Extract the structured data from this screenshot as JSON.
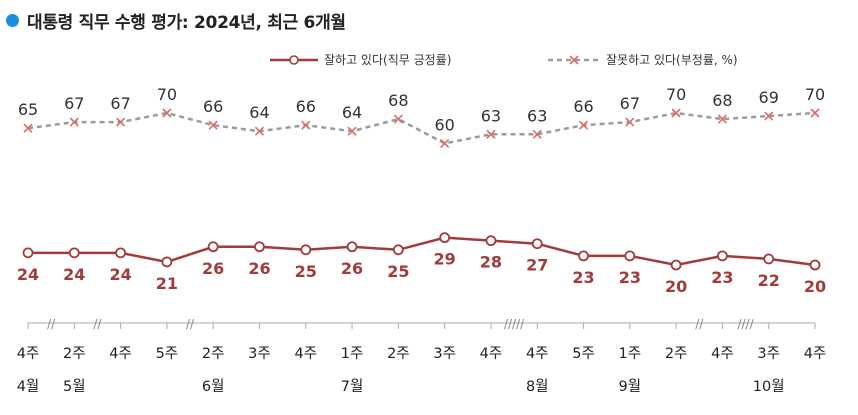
{
  "title": "대통령 직무 수행 평가: 2024년, 최근 6개월",
  "colors": {
    "approve": "#a23b3b",
    "disapprove": "#9b9b9b",
    "disapprove_marker": "#d96b6b",
    "title_dot": "#1a8fe0",
    "axis": "#aaaaaa"
  },
  "icons": {
    "title_marker": "filled-circle-icon",
    "approve_marker": "hollow-circle-icon",
    "disapprove_marker": "cross-icon"
  },
  "chart_data": {
    "type": "line",
    "title": "대통령 직무 수행 평가: 2024년, 최근 6개월",
    "categories": [
      "4주",
      "2주",
      "4주",
      "5주",
      "2주",
      "3주",
      "4주",
      "1주",
      "2주",
      "3주",
      "4주",
      "4주",
      "5주",
      "1주",
      "2주",
      "4주",
      "3주",
      "4주"
    ],
    "months": [
      {
        "label": "4월",
        "index": 0
      },
      {
        "label": "5월",
        "index": 1
      },
      {
        "label": "6월",
        "index": 4
      },
      {
        "label": "7월",
        "index": 7
      },
      {
        "label": "8월",
        "index": 11
      },
      {
        "label": "9월",
        "index": 13
      },
      {
        "label": "10월",
        "index": 16
      }
    ],
    "axis_breaks": [
      {
        "after_index": 0,
        "label": "//"
      },
      {
        "after_index": 1,
        "label": "//"
      },
      {
        "after_index": 3,
        "label": "//"
      },
      {
        "after_index": 10,
        "label": "/////"
      },
      {
        "after_index": 14,
        "label": "//"
      },
      {
        "after_index": 15,
        "label": "////"
      }
    ],
    "series": [
      {
        "name": "잘하고 있다(직무 긍정률)",
        "style": "solid",
        "marker": "circle",
        "values": [
          24,
          24,
          24,
          21,
          26,
          26,
          25,
          26,
          25,
          29,
          28,
          27,
          23,
          23,
          20,
          23,
          22,
          20
        ]
      },
      {
        "name": "잘못하고 있다(부정률, %)",
        "style": "dashed",
        "marker": "x",
        "values": [
          65,
          67,
          67,
          70,
          66,
          64,
          66,
          64,
          68,
          60,
          63,
          63,
          66,
          67,
          70,
          68,
          69,
          70
        ]
      }
    ],
    "ylim": [
      0,
      100
    ],
    "grid": false,
    "legend_position": "top-right"
  }
}
